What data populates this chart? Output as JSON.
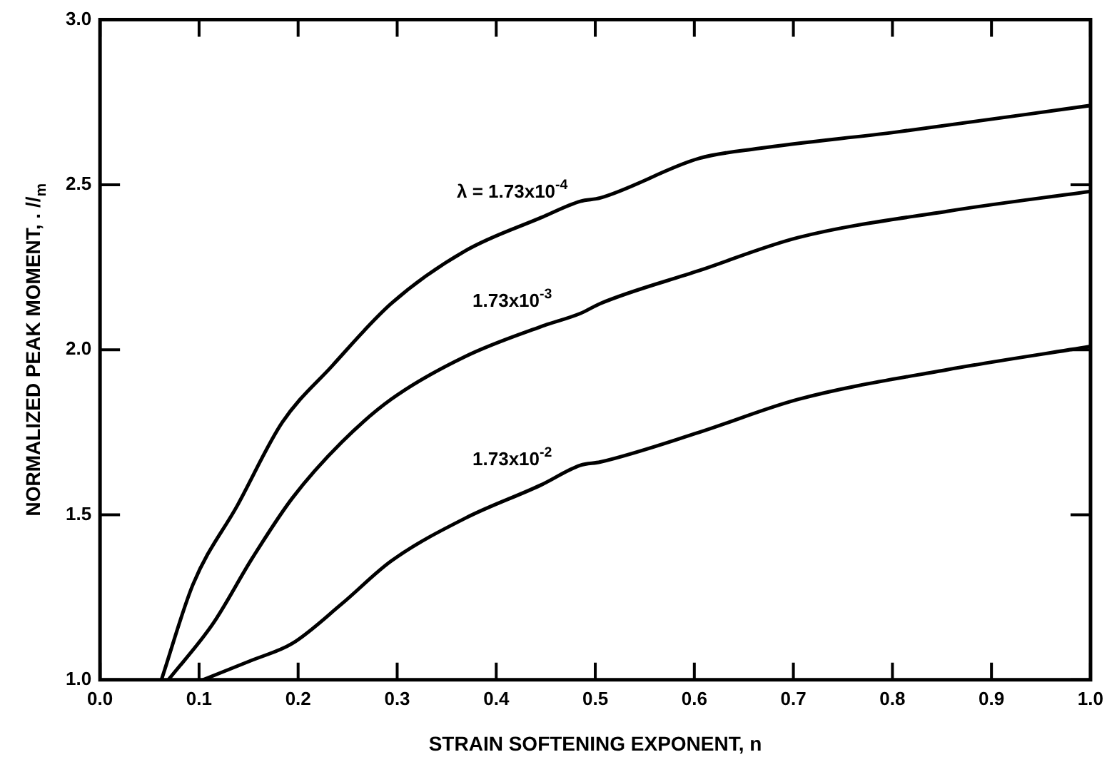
{
  "chart_data": {
    "type": "line",
    "xlabel": "STRAIN SOFTENING EXPONENT, n",
    "ylabel": "NORMALIZED PEAK MOMENT, . //$_{m}$",
    "xlim": [
      0,
      1
    ],
    "ylim": [
      1,
      3
    ],
    "xticks": [
      {
        "value": 0,
        "label": "0.0"
      },
      {
        "value": 0.1,
        "label": "0.1"
      },
      {
        "value": 0.2,
        "label": "0.2"
      },
      {
        "value": 0.3,
        "label": "0.3"
      },
      {
        "value": 0.4,
        "label": "0.4"
      },
      {
        "value": 0.5,
        "label": "0.5"
      },
      {
        "value": 0.6,
        "label": "0.6"
      },
      {
        "value": 0.7,
        "label": "0.7"
      },
      {
        "value": 0.8,
        "label": "0.8"
      },
      {
        "value": 0.9,
        "label": "0.9"
      },
      {
        "value": 1,
        "label": "1.0"
      }
    ],
    "yticks": [
      {
        "value": 1,
        "label": "1.0"
      },
      {
        "value": 1.5,
        "label": "1.5"
      },
      {
        "value": 2,
        "label": "2.0"
      },
      {
        "value": 2.5,
        "label": "2.5"
      },
      {
        "value": 3,
        "label": "3.0"
      }
    ],
    "grid": false,
    "legend": false,
    "marker": "none",
    "line_style": "solid",
    "series": [
      {
        "name": "λ = 1.73x10$^{-4}$",
        "color": "#000000",
        "x": [
          0.062,
          0.094,
          0.139,
          0.184,
          0.234,
          0.294,
          0.369,
          0.445,
          0.485,
          0.505,
          0.605,
          0.665,
          0.805,
          1.0
        ],
        "values": [
          1.0,
          1.29,
          1.53,
          1.78,
          1.95,
          2.14,
          2.3,
          2.4,
          2.45,
          2.46,
          2.58,
          2.61,
          2.66,
          2.74
        ]
      },
      {
        "name": "1.73x10$^{-3}$",
        "color": "#000000",
        "x": [
          0.069,
          0.114,
          0.154,
          0.194,
          0.244,
          0.294,
          0.369,
          0.445,
          0.485,
          0.505,
          0.605,
          0.705,
          0.856,
          1.0
        ],
        "values": [
          1.0,
          1.17,
          1.37,
          1.55,
          1.72,
          1.85,
          1.98,
          2.07,
          2.11,
          2.14,
          2.24,
          2.34,
          2.42,
          2.48
        ]
      },
      {
        "name": "1.73x10$^{-2}$",
        "color": "#000000",
        "x": [
          0.104,
          0.154,
          0.194,
          0.244,
          0.294,
          0.369,
          0.445,
          0.485,
          0.505,
          0.605,
          0.705,
          0.856,
          1.0
        ],
        "values": [
          1.0,
          1.06,
          1.11,
          1.23,
          1.36,
          1.49,
          1.59,
          1.65,
          1.66,
          1.75,
          1.85,
          1.94,
          2.01
        ]
      }
    ]
  }
}
